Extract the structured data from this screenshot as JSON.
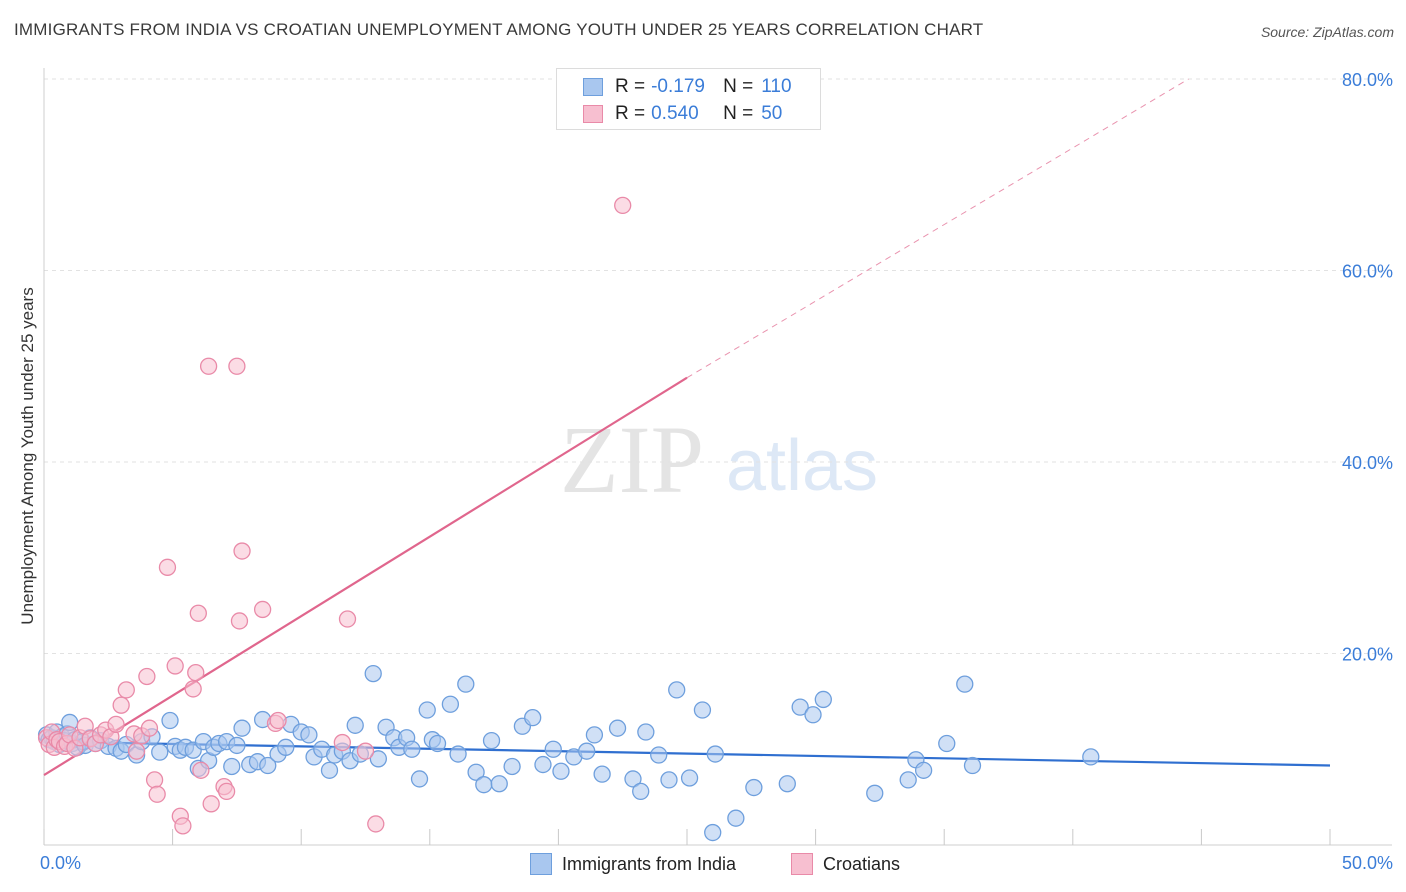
{
  "header": {
    "title": "IMMIGRANTS FROM INDIA VS CROATIAN UNEMPLOYMENT AMONG YOUTH UNDER 25 YEARS CORRELATION CHART",
    "source": "Source: ZipAtlas.com"
  },
  "watermark": {
    "zip": "ZIP",
    "atlas": "atlas"
  },
  "legend": {
    "rows": [
      {
        "r_label": "R =",
        "r_value": "-0.179",
        "n_label": "N =",
        "n_value": "110"
      },
      {
        "r_label": "R =",
        "r_value": "0.540",
        "n_label": "N =",
        "n_value": "50"
      }
    ]
  },
  "bottom_legend": {
    "items": [
      {
        "label": "Immigrants from India"
      },
      {
        "label": "Croatians"
      }
    ]
  },
  "colors": {
    "india_fill": "#a9c7ef",
    "india_stroke": "#6e9fdd",
    "india_line": "#2f6fd0",
    "croatian_fill": "#f7bfd0",
    "croatian_stroke": "#e98aa8",
    "croatian_line": "#e0668d",
    "tick_label": "#3b7dd8",
    "grid": "#e2e2e2"
  },
  "chart_data": {
    "type": "scatter",
    "title": "IMMIGRANTS FROM INDIA VS CROATIAN UNEMPLOYMENT AMONG YOUTH UNDER 25 YEARS CORRELATION CHART",
    "xlabel": "",
    "ylabel": "Unemployment Among Youth under 25 years",
    "xlim": [
      0,
      50
    ],
    "ylim": [
      0,
      80
    ],
    "x_tick_labels": [
      {
        "value": 0,
        "label": "0.0%"
      },
      {
        "value": 50,
        "label": "50.0%"
      }
    ],
    "y_tick_labels": [
      {
        "value": 20,
        "label": "20.0%"
      },
      {
        "value": 40,
        "label": "40.0%"
      },
      {
        "value": 60,
        "label": "60.0%"
      },
      {
        "value": 80,
        "label": "80.0%"
      }
    ],
    "x_minor_ticks": [
      0,
      5,
      10,
      15,
      20,
      25,
      30,
      35,
      40,
      45,
      50
    ],
    "y_gridlines": [
      20,
      40,
      60,
      80
    ],
    "series": [
      {
        "name": "Immigrants from India",
        "color_key": "india",
        "trend": {
          "x0": 0,
          "y0": 10.8,
          "x1": 50,
          "y1": 8.3,
          "dashed_to": null
        },
        "points": [
          [
            0.1,
            11.5
          ],
          [
            0.2,
            11.0
          ],
          [
            0.3,
            11.2
          ],
          [
            0.4,
            10.8
          ],
          [
            0.5,
            11.8
          ],
          [
            0.6,
            10.5
          ],
          [
            0.7,
            11.3
          ],
          [
            0.8,
            10.9
          ],
          [
            0.9,
            11.6
          ],
          [
            1.0,
            12.8
          ],
          [
            1.1,
            10.6
          ],
          [
            1.2,
            11.0
          ],
          [
            1.3,
            10.2
          ],
          [
            1.5,
            10.8
          ],
          [
            1.6,
            10.4
          ],
          [
            1.8,
            11.2
          ],
          [
            2.0,
            10.6
          ],
          [
            2.2,
            10.9
          ],
          [
            2.5,
            10.3
          ],
          [
            2.8,
            10.1
          ],
          [
            3.0,
            9.8
          ],
          [
            3.2,
            10.5
          ],
          [
            3.6,
            9.4
          ],
          [
            3.8,
            10.8
          ],
          [
            4.2,
            11.3
          ],
          [
            4.5,
            9.7
          ],
          [
            4.9,
            13.0
          ],
          [
            5.1,
            10.3
          ],
          [
            5.3,
            9.9
          ],
          [
            5.5,
            10.2
          ],
          [
            5.8,
            9.9
          ],
          [
            6.0,
            8.0
          ],
          [
            6.2,
            10.8
          ],
          [
            6.4,
            8.8
          ],
          [
            6.6,
            10.2
          ],
          [
            6.8,
            10.6
          ],
          [
            7.1,
            10.8
          ],
          [
            7.3,
            8.2
          ],
          [
            7.5,
            10.4
          ],
          [
            7.7,
            12.2
          ],
          [
            8.0,
            8.4
          ],
          [
            8.3,
            8.7
          ],
          [
            8.5,
            13.1
          ],
          [
            8.7,
            8.3
          ],
          [
            9.1,
            9.5
          ],
          [
            9.4,
            10.2
          ],
          [
            9.6,
            12.6
          ],
          [
            10.0,
            11.8
          ],
          [
            10.3,
            11.5
          ],
          [
            10.5,
            9.2
          ],
          [
            10.8,
            10.0
          ],
          [
            11.1,
            7.8
          ],
          [
            11.3,
            9.4
          ],
          [
            11.6,
            9.8
          ],
          [
            11.9,
            8.8
          ],
          [
            12.1,
            12.5
          ],
          [
            12.3,
            9.5
          ],
          [
            12.8,
            17.9
          ],
          [
            13.0,
            9.0
          ],
          [
            13.3,
            12.3
          ],
          [
            13.6,
            11.2
          ],
          [
            13.8,
            10.2
          ],
          [
            14.1,
            11.2
          ],
          [
            14.3,
            10.0
          ],
          [
            14.6,
            6.9
          ],
          [
            14.9,
            14.1
          ],
          [
            15.1,
            11.0
          ],
          [
            15.3,
            10.6
          ],
          [
            15.8,
            14.7
          ],
          [
            16.1,
            9.5
          ],
          [
            16.4,
            16.8
          ],
          [
            16.8,
            7.6
          ],
          [
            17.1,
            6.3
          ],
          [
            17.4,
            10.9
          ],
          [
            17.7,
            6.4
          ],
          [
            18.2,
            8.2
          ],
          [
            18.6,
            12.4
          ],
          [
            19.0,
            13.3
          ],
          [
            19.4,
            8.4
          ],
          [
            19.8,
            10.0
          ],
          [
            20.1,
            7.7
          ],
          [
            20.6,
            9.2
          ],
          [
            21.1,
            9.8
          ],
          [
            21.4,
            11.5
          ],
          [
            21.7,
            7.4
          ],
          [
            22.3,
            12.2
          ],
          [
            22.9,
            6.9
          ],
          [
            23.2,
            5.6
          ],
          [
            23.4,
            11.8
          ],
          [
            23.9,
            9.4
          ],
          [
            24.3,
            6.8
          ],
          [
            24.6,
            16.2
          ],
          [
            25.1,
            7.0
          ],
          [
            25.6,
            14.1
          ],
          [
            26.0,
            1.3
          ],
          [
            26.1,
            9.5
          ],
          [
            26.9,
            2.8
          ],
          [
            27.6,
            6.0
          ],
          [
            28.9,
            6.4
          ],
          [
            29.4,
            14.4
          ],
          [
            29.9,
            13.6
          ],
          [
            30.3,
            15.2
          ],
          [
            32.3,
            5.4
          ],
          [
            33.6,
            6.8
          ],
          [
            33.9,
            8.9
          ],
          [
            34.2,
            7.8
          ],
          [
            35.1,
            10.6
          ],
          [
            35.8,
            16.8
          ],
          [
            36.1,
            8.3
          ],
          [
            40.7,
            9.2
          ]
        ]
      },
      {
        "name": "Croatians",
        "color_key": "croatian",
        "trend": {
          "x0": 0,
          "y0": 7.3,
          "x1": 25,
          "y1": 48.8,
          "dashed_to": {
            "x": 44.5,
            "y": 80
          }
        },
        "points": [
          [
            0.1,
            11.2
          ],
          [
            0.2,
            10.5
          ],
          [
            0.3,
            11.8
          ],
          [
            0.4,
            10.2
          ],
          [
            0.5,
            11.0
          ],
          [
            0.6,
            10.8
          ],
          [
            0.8,
            10.3
          ],
          [
            0.9,
            10.6
          ],
          [
            1.0,
            11.5
          ],
          [
            1.2,
            10.1
          ],
          [
            1.4,
            11.2
          ],
          [
            1.6,
            12.4
          ],
          [
            1.8,
            11.1
          ],
          [
            2.0,
            10.6
          ],
          [
            2.2,
            11.5
          ],
          [
            2.4,
            12.0
          ],
          [
            2.6,
            11.3
          ],
          [
            2.8,
            12.6
          ],
          [
            3.0,
            14.6
          ],
          [
            3.2,
            16.2
          ],
          [
            3.5,
            11.6
          ],
          [
            3.6,
            9.8
          ],
          [
            3.8,
            11.4
          ],
          [
            4.0,
            17.6
          ],
          [
            4.1,
            12.2
          ],
          [
            4.3,
            6.8
          ],
          [
            4.4,
            5.3
          ],
          [
            4.8,
            29.0
          ],
          [
            5.1,
            18.7
          ],
          [
            5.3,
            3.0
          ],
          [
            5.4,
            2.0
          ],
          [
            5.8,
            16.3
          ],
          [
            5.9,
            18.0
          ],
          [
            6.0,
            24.2
          ],
          [
            6.1,
            7.8
          ],
          [
            6.4,
            50.0
          ],
          [
            6.5,
            4.3
          ],
          [
            7.0,
            6.1
          ],
          [
            7.1,
            5.6
          ],
          [
            7.5,
            50.0
          ],
          [
            7.6,
            23.4
          ],
          [
            7.7,
            30.7
          ],
          [
            8.5,
            24.6
          ],
          [
            9.0,
            12.7
          ],
          [
            9.1,
            13.0
          ],
          [
            11.6,
            10.7
          ],
          [
            11.8,
            23.6
          ],
          [
            12.5,
            9.8
          ],
          [
            12.9,
            2.2
          ],
          [
            22.5,
            66.8
          ]
        ]
      }
    ]
  }
}
